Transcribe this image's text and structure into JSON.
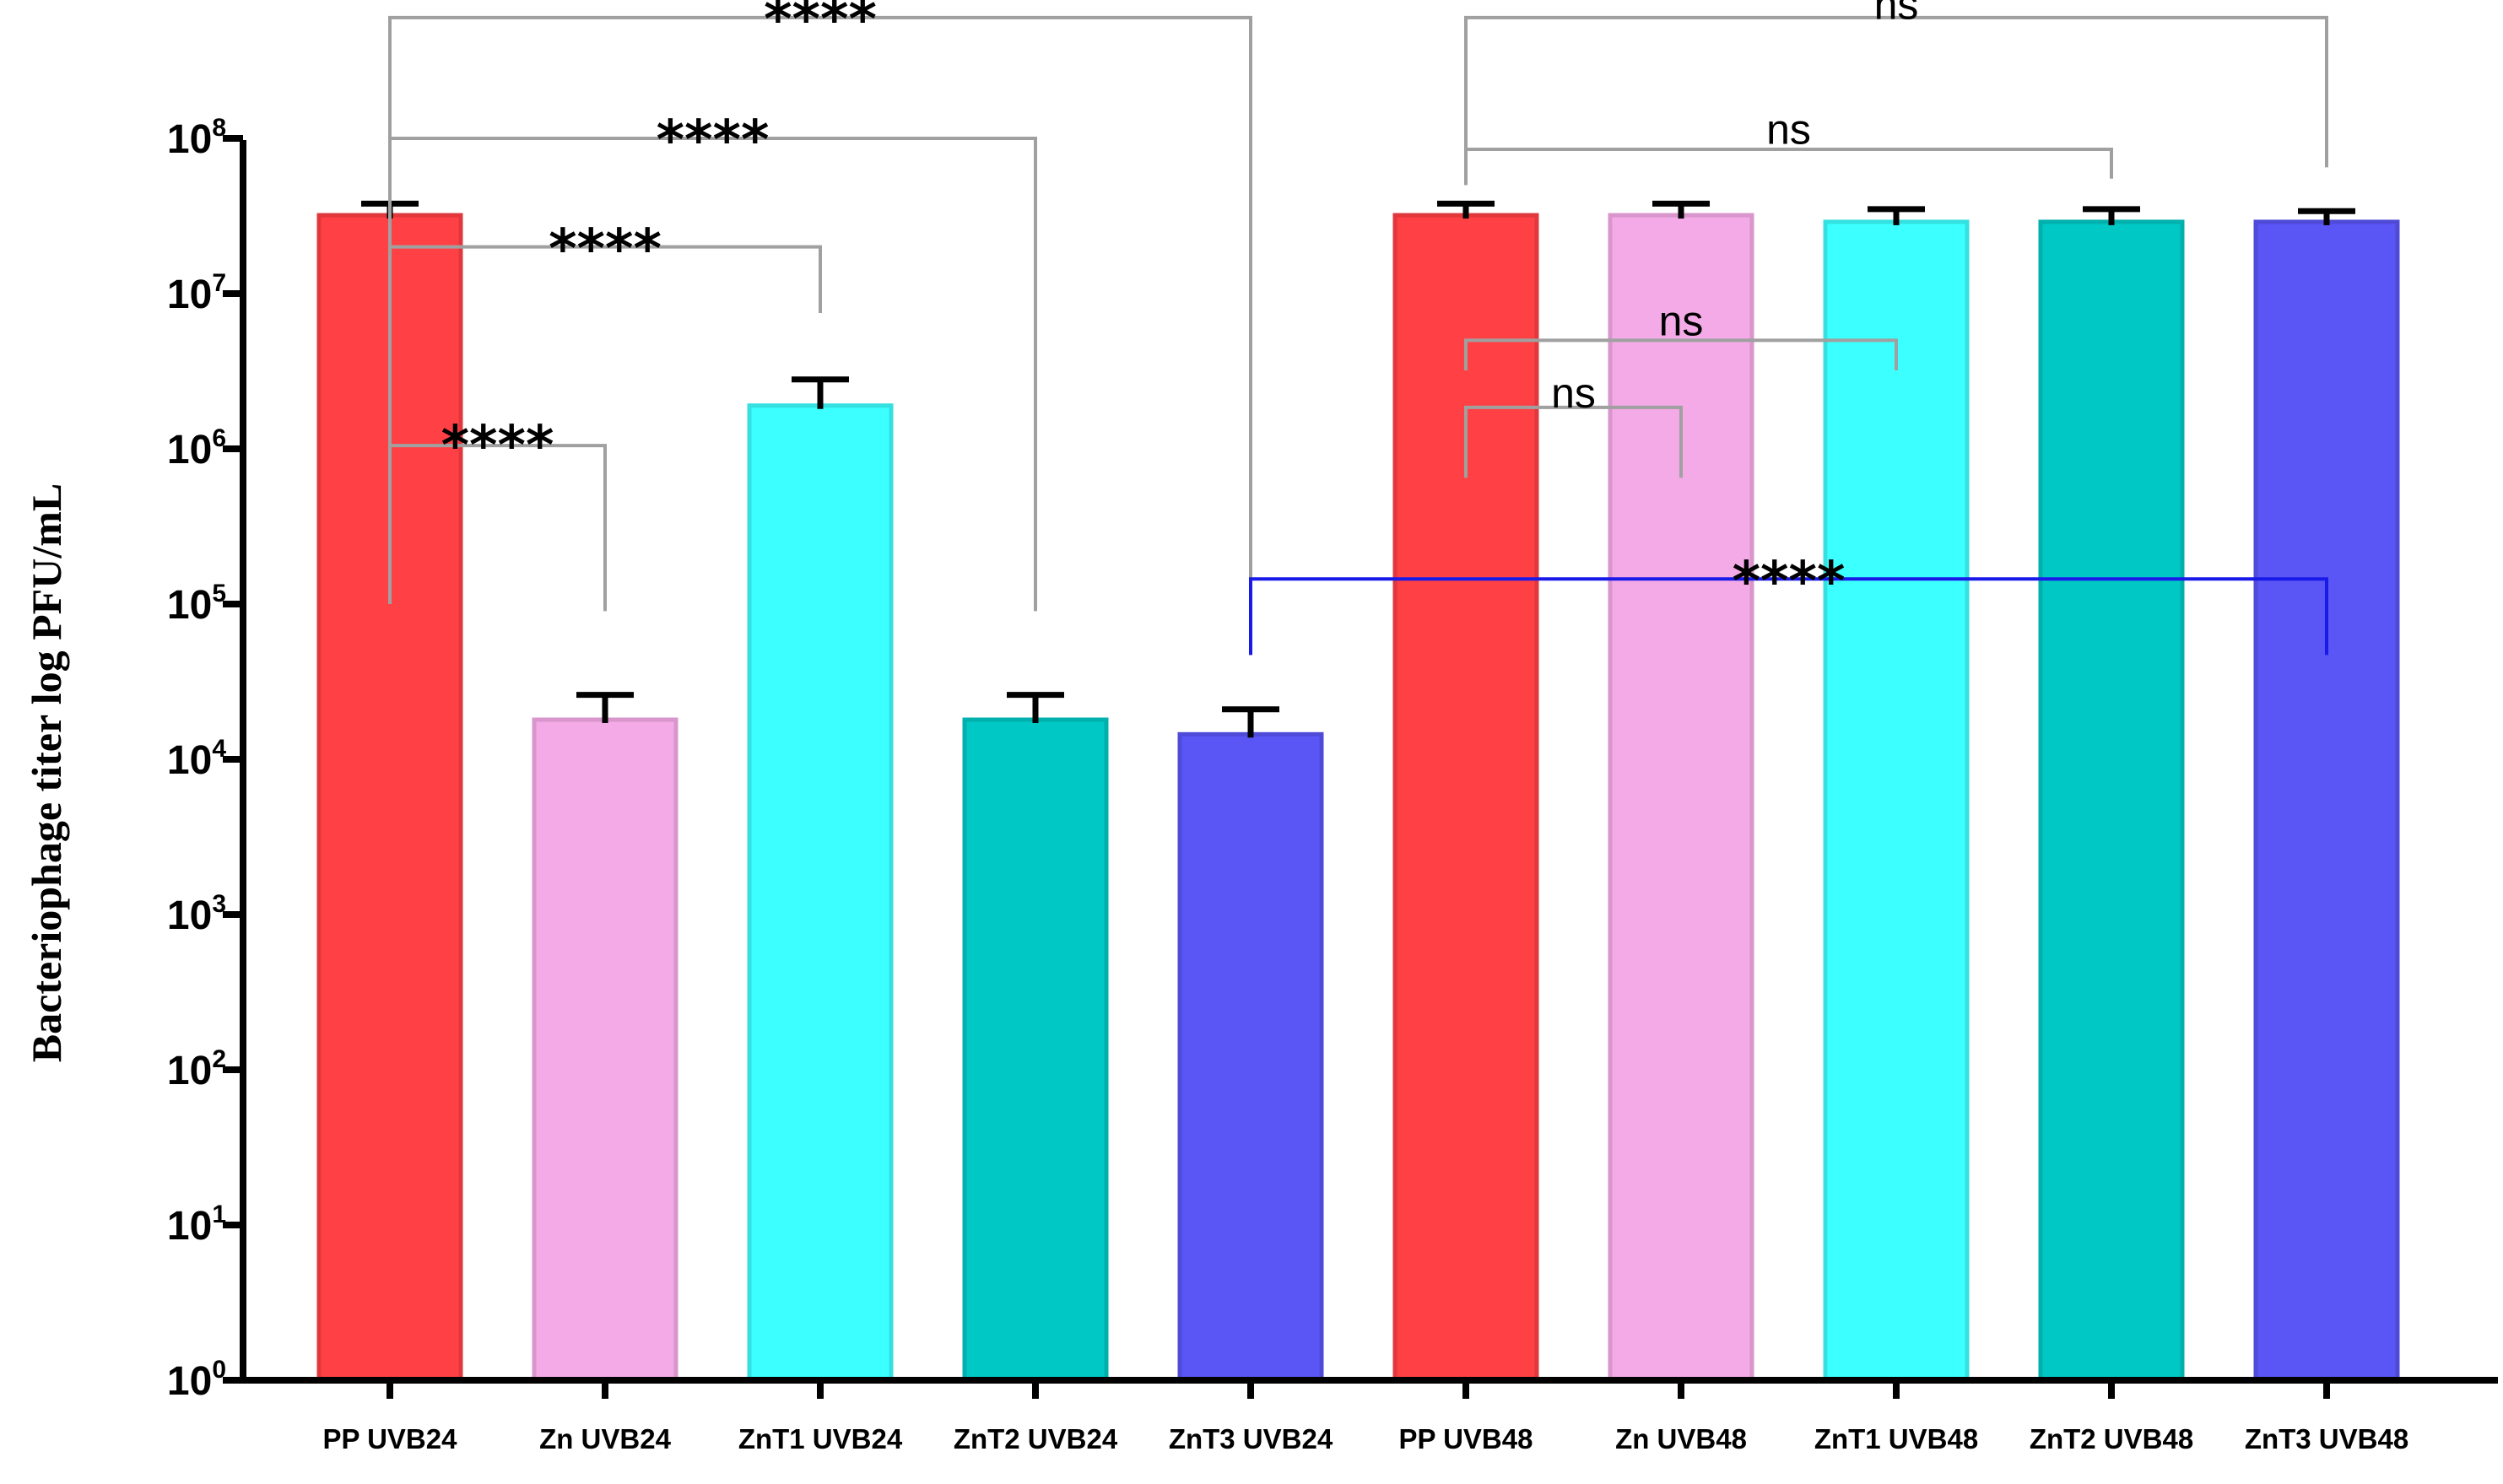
{
  "chart_data": {
    "type": "bar",
    "title": "",
    "xlabel": "",
    "ylabel": "Bacteriophage titer log PFU/mL",
    "yscale": "log",
    "ylim": [
      1,
      100000000
    ],
    "yticks": [
      {
        "base": "10",
        "exp": "0",
        "value": 1
      },
      {
        "base": "10",
        "exp": "1",
        "value": 10
      },
      {
        "base": "10",
        "exp": "2",
        "value": 100
      },
      {
        "base": "10",
        "exp": "3",
        "value": 1000
      },
      {
        "base": "10",
        "exp": "4",
        "value": 10000
      },
      {
        "base": "10",
        "exp": "5",
        "value": 100000
      },
      {
        "base": "10",
        "exp": "6",
        "value": 1000000
      },
      {
        "base": "10",
        "exp": "7",
        "value": 10000000
      },
      {
        "base": "10",
        "exp": "8",
        "value": 100000000
      }
    ],
    "categories": [
      "PP UVB24",
      "Zn UVB24",
      "ZnT1 UVB24",
      "ZnT2 UVB24",
      "ZnT3 UVB24",
      "PP UVB48",
      "Zn UVB48",
      "ZnT1 UVB48",
      "ZnT2 UVB48",
      "ZnT3 UVB48"
    ],
    "values": [
      32000000,
      18000,
      1900000,
      18000,
      14500,
      32000000,
      32000000,
      29000000,
      29000000,
      29000000
    ],
    "error_upper": [
      38000000,
      26000,
      2800000,
      26000,
      21000,
      38000000,
      38000000,
      35000000,
      35000000,
      34000000
    ],
    "colors": [
      "#ff4044",
      "#f5aae8",
      "#3cffff",
      "#00c8c4",
      "#5a55f5",
      "#ff4044",
      "#f5aae8",
      "#3cffff",
      "#00c8c4",
      "#5a55f5"
    ],
    "significance": [
      {
        "from": 0,
        "to": 4,
        "label": "****",
        "bar_y": 600000000,
        "left_drop": 100000,
        "right_drop": 70000,
        "text_y": 750000000,
        "color": "#a0a0a0",
        "text_color": "#000000"
      },
      {
        "from": 0,
        "to": 3,
        "label": "****",
        "bar_y": 100000000,
        "left_drop": 100000,
        "right_drop": 90000,
        "text_y": 125000000,
        "color": "#a0a0a0",
        "text_color": "#000000"
      },
      {
        "from": 0,
        "to": 2,
        "label": "****",
        "bar_y": 20000000,
        "left_drop": 7500000,
        "right_drop": 7500000,
        "text_y": 25000000,
        "color": "#a0a0a0",
        "text_color": "#000000"
      },
      {
        "from": 0,
        "to": 1,
        "label": "****",
        "bar_y": 1050000,
        "left_drop": 600000,
        "right_drop": 90000,
        "text_y": 1350000,
        "color": "#a0a0a0",
        "text_color": "#000000"
      },
      {
        "from": 5,
        "to": 9,
        "label": "ns",
        "bar_y": 600000000,
        "left_drop": 50000000,
        "right_drop": 65000000,
        "text_y": 700000000,
        "color": "#a0a0a0",
        "text_color": "#000000"
      },
      {
        "from": 5,
        "to": 8,
        "label": "ns",
        "bar_y": 85000000,
        "left_drop": 55000000,
        "right_drop": 55000000,
        "text_y": 110000000,
        "color": "#a0a0a0",
        "text_color": "#000000"
      },
      {
        "from": 5,
        "to": 7,
        "label": "ns",
        "bar_y": 5000000,
        "left_drop": 3200000,
        "right_drop": 3200000,
        "text_y": 6400000,
        "color": "#a0a0a0",
        "text_color": "#000000"
      },
      {
        "from": 5,
        "to": 6,
        "label": "ns",
        "bar_y": 1850000,
        "left_drop": 650000,
        "right_drop": 650000,
        "text_y": 2200000,
        "color": "#a0a0a0",
        "text_color": "#000000"
      },
      {
        "from": 4,
        "to": 9,
        "label": "****",
        "bar_y": 145000,
        "left_drop": 47000,
        "right_drop": 47000,
        "text_y": 180000,
        "color": "#1a1ae8",
        "text_color": "#000000"
      }
    ]
  }
}
